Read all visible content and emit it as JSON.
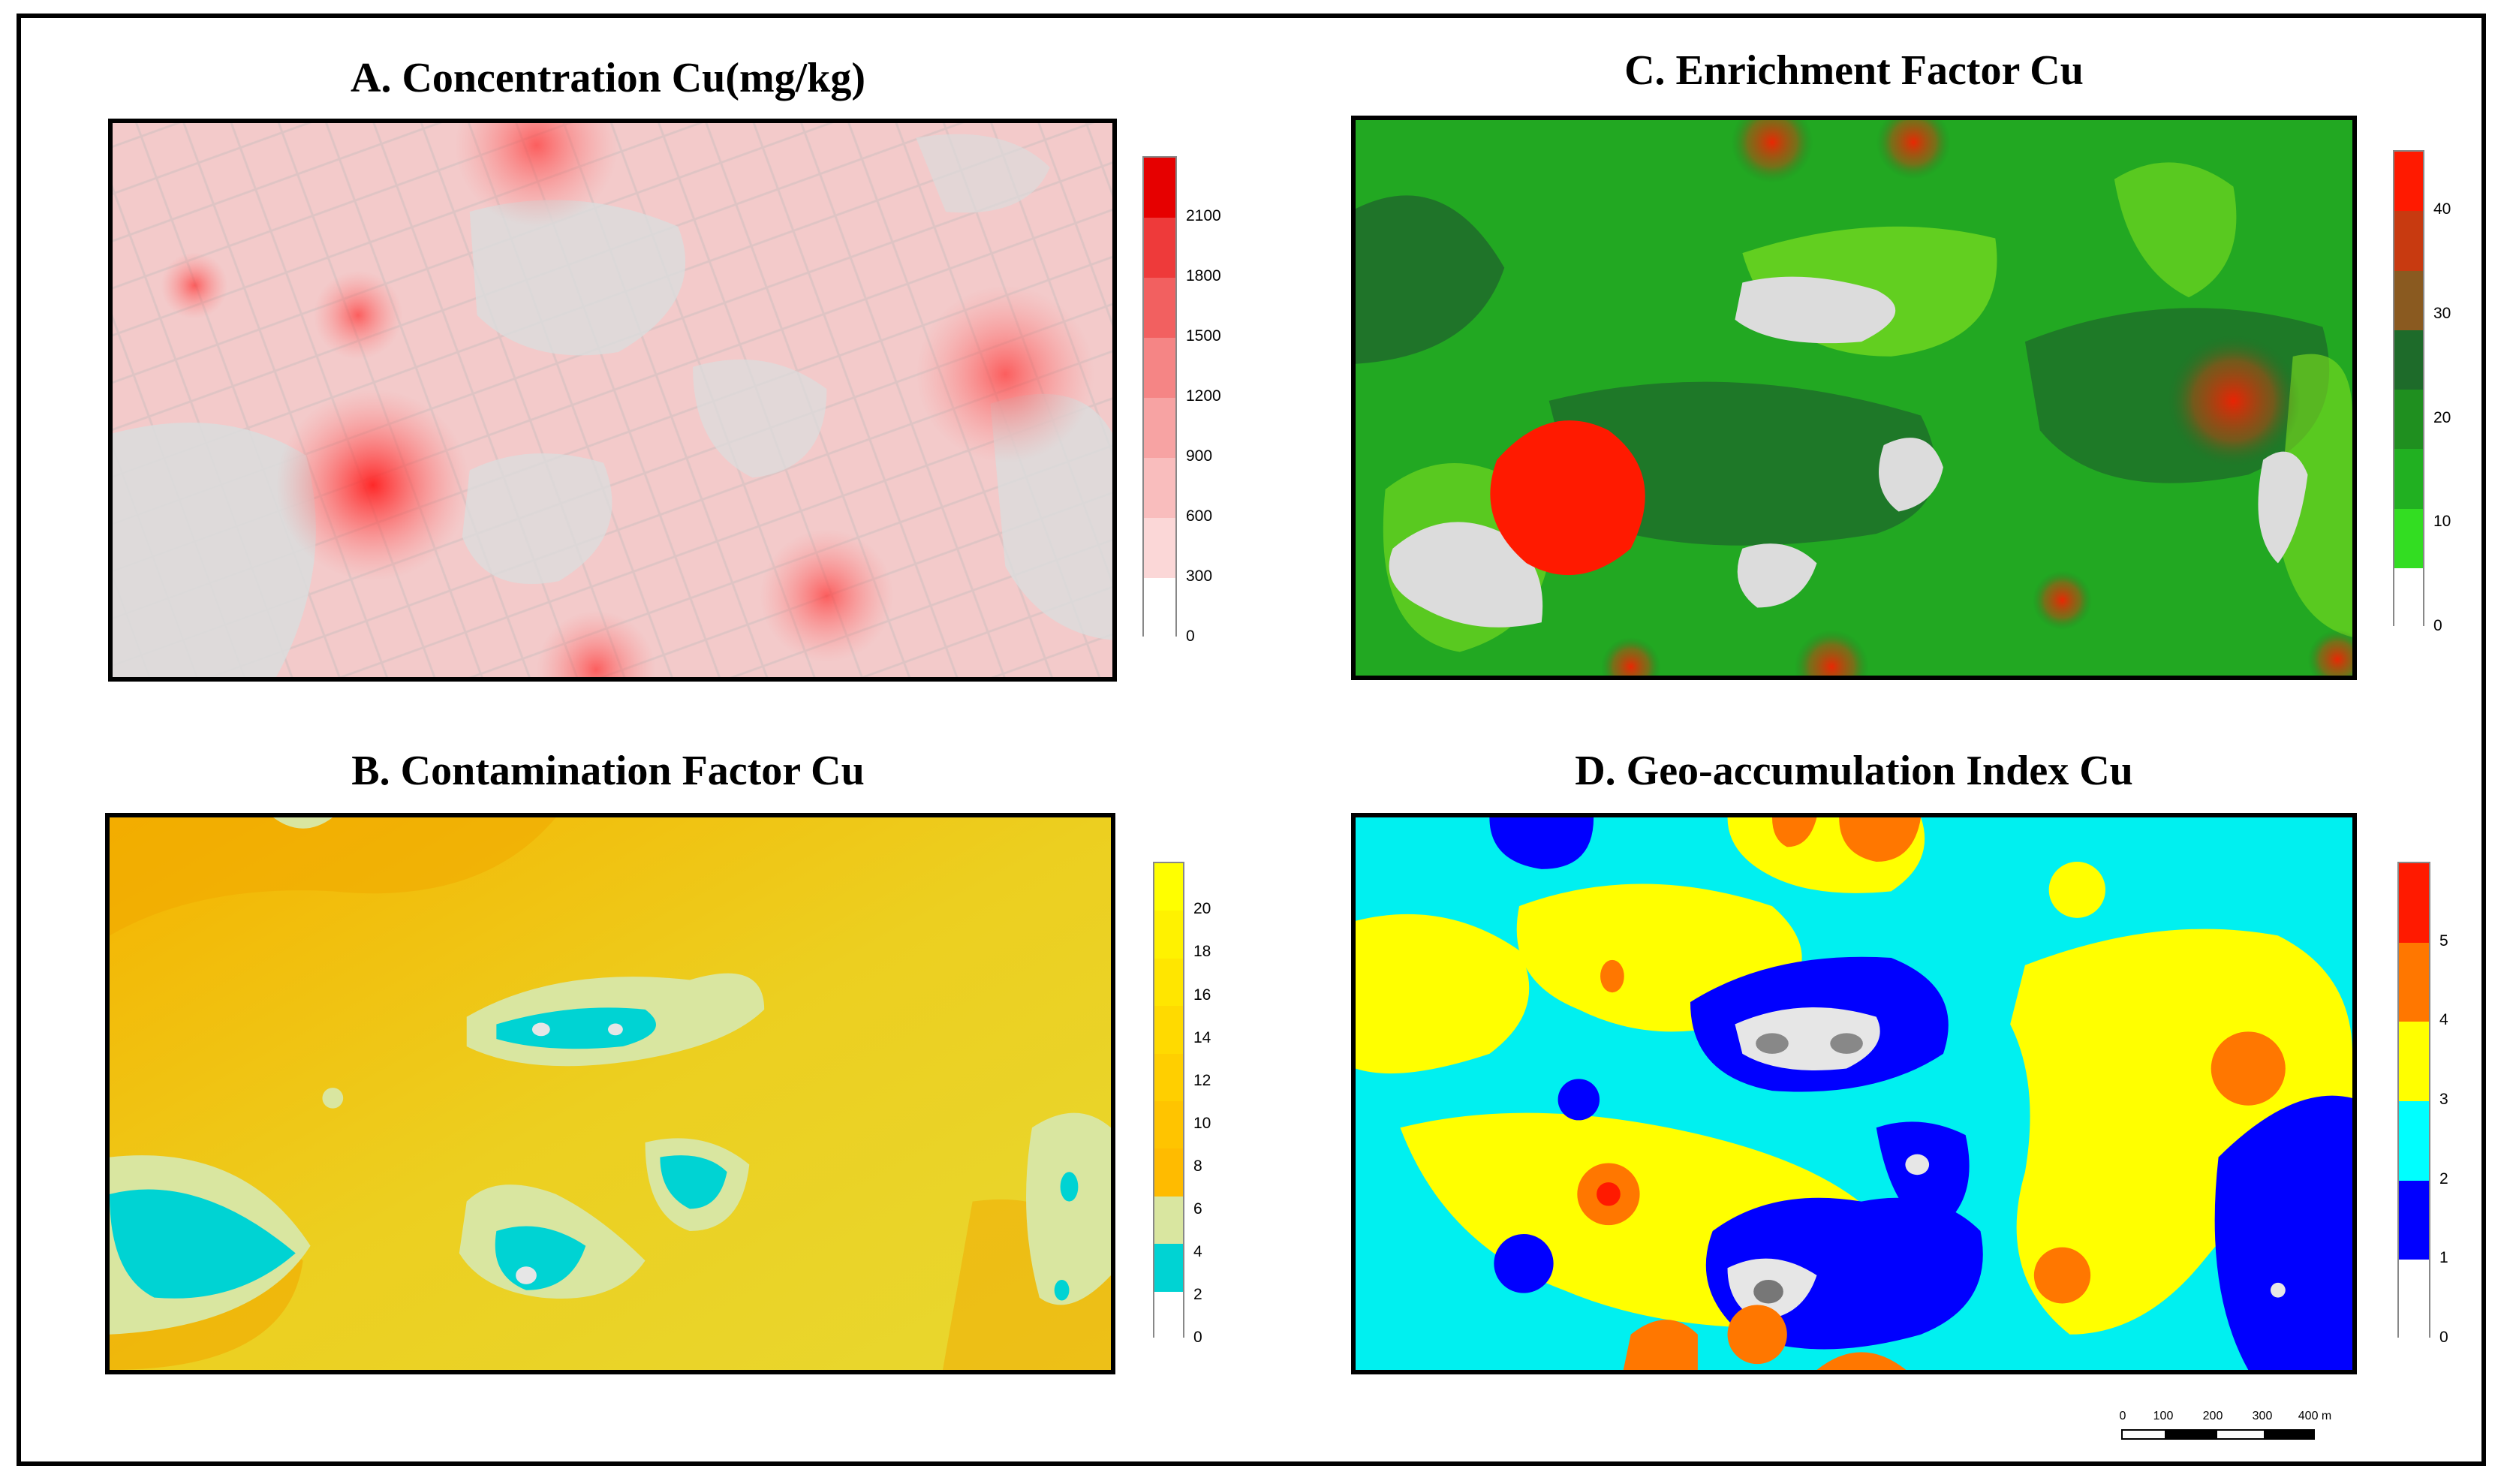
{
  "panels": {
    "a": {
      "title": "A. Concentration Cu(mg/kg)",
      "legend": {
        "ticks": [
          "2100",
          "1800",
          "1500",
          "1200",
          "900",
          "600",
          "300",
          "0"
        ],
        "colors": [
          "#e60000",
          "#ee3a3a",
          "#f26060",
          "#f58585",
          "#f7a3a3",
          "#f9bdbd",
          "#fbd7d7",
          "#ffffff"
        ]
      }
    },
    "b": {
      "title": "B. Contamination Factor Cu",
      "legend": {
        "ticks": [
          "20",
          "18",
          "16",
          "14",
          "12",
          "10",
          "8",
          "6",
          "4",
          "2",
          "0"
        ],
        "colors": [
          "#ffff00",
          "#fff200",
          "#ffe600",
          "#ffda00",
          "#ffcf00",
          "#ffc400",
          "#ffbb00",
          "#d9e6a0",
          "#00d3d3",
          "#ffffff"
        ]
      }
    },
    "c": {
      "title": "C. Enrichment Factor Cu",
      "legend": {
        "ticks": [
          "40",
          "30",
          "20",
          "10",
          "0"
        ],
        "colors": [
          "#ff1a00",
          "#c83a10",
          "#8a5a20",
          "#1e6b2a",
          "#1f8f1f",
          "#21b021",
          "#33dd22",
          "#ffffff"
        ]
      }
    },
    "d": {
      "title": "D. Geo-accumulation Index Cu",
      "legend": {
        "ticks": [
          "5",
          "4",
          "3",
          "2",
          "1",
          "0"
        ],
        "colors": [
          "#ff1a00",
          "#ff7700",
          "#ffff00",
          "#00ffff",
          "#0000ff",
          "#ffffff"
        ]
      }
    }
  },
  "scale": {
    "labels": [
      "0",
      "100",
      "200",
      "300",
      "400 m"
    ]
  }
}
